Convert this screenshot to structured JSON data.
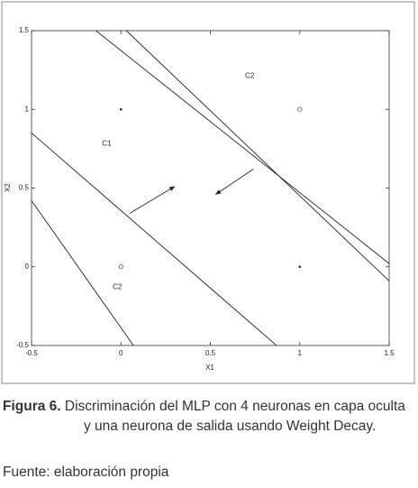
{
  "chart_data": {
    "type": "line",
    "xlabel": "X1",
    "ylabel": "X2",
    "xlim": [
      -0.5,
      1.5
    ],
    "ylim": [
      -0.5,
      1.5
    ],
    "xticks": [
      -0.5,
      0,
      0.5,
      1,
      1.5
    ],
    "yticks": [
      -0.5,
      0,
      0.5,
      1,
      1.5
    ],
    "color": "#222",
    "series": [
      {
        "x": [
          -0.14,
          1.5
        ],
        "y": [
          1.5,
          0.02
        ]
      },
      {
        "x": [
          0.03,
          1.5
        ],
        "y": [
          1.5,
          -0.09
        ]
      },
      {
        "x": [
          -0.5,
          0.87
        ],
        "y": [
          0.85,
          -0.5
        ]
      },
      {
        "x": [
          -0.5,
          0.07
        ],
        "y": [
          0.42,
          -0.5
        ]
      }
    ],
    "filled_points": {
      "x": [
        0,
        1
      ],
      "y": [
        1,
        0
      ]
    },
    "open_points": {
      "x": [
        1,
        0
      ],
      "y": [
        1,
        0
      ]
    },
    "arrows": [
      {
        "x": [
          0.05,
          0.3
        ],
        "y": [
          0.34,
          0.51
        ]
      },
      {
        "x": [
          0.74,
          0.53
        ],
        "y": [
          0.62,
          0.46
        ]
      }
    ],
    "annotations": [
      {
        "text": "C2",
        "x": 0.72,
        "y": 1.21
      },
      {
        "text": "C1",
        "x": -0.08,
        "y": 0.78
      },
      {
        "text": "C2",
        "x": -0.02,
        "y": -0.13
      }
    ]
  },
  "caption": {
    "label": "Figura 6.",
    "text": "Discriminación del MLP con 4 neuronas en capa oculta y una neurona de salida usando Weight Decay."
  },
  "source": "Fuente: elaboración propia"
}
